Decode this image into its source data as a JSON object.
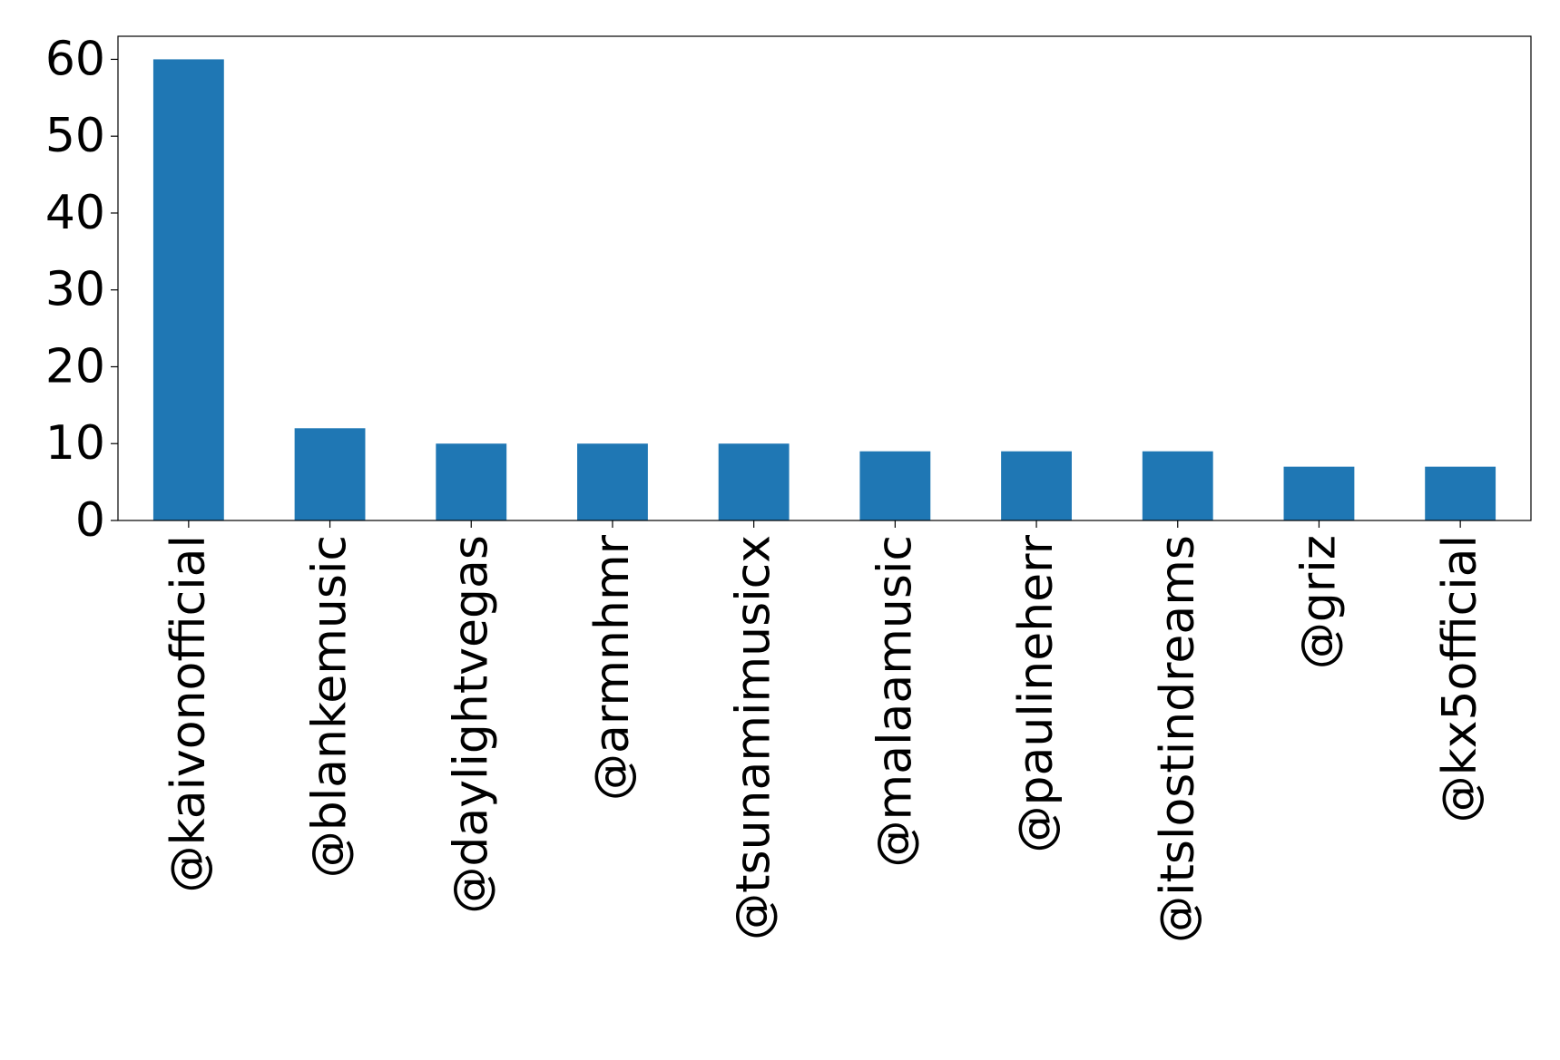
{
  "chart_data": {
    "type": "bar",
    "title": "",
    "xlabel": "",
    "ylabel": "",
    "categories": [
      "@kaivonofficial",
      "@blankemusic",
      "@daylightvegas",
      "@armnhmr",
      "@tsunamimusicx",
      "@malaamusic",
      "@paulineherr",
      "@itslostindreams",
      "@griz",
      "@kx5official"
    ],
    "values": [
      60,
      12,
      10,
      10,
      10,
      9,
      9,
      9,
      7,
      7
    ],
    "ylim": [
      0,
      63
    ],
    "yticks": [
      0,
      10,
      20,
      30,
      40,
      50,
      60
    ],
    "grid": false,
    "legend": "none",
    "bar_color": "#1f77b4"
  }
}
